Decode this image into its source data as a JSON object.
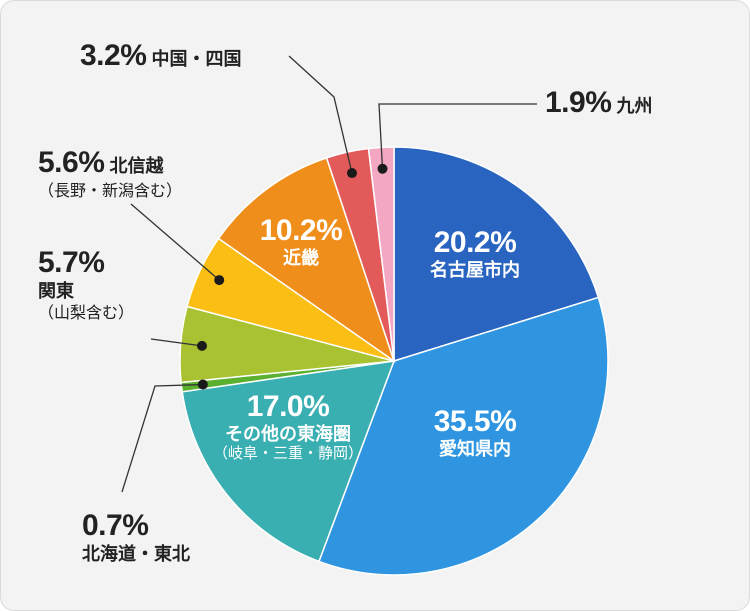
{
  "chart_data": {
    "type": "pie",
    "start_angle_deg": 0,
    "direction": "clockwise",
    "slices": [
      {
        "label": "名古屋市内",
        "pct_text": "20.2%",
        "value": 20.2,
        "color": "#2965c0",
        "sub": ""
      },
      {
        "label": "愛知県内",
        "pct_text": "35.5%",
        "value": 35.5,
        "color": "#2f95e0",
        "sub": ""
      },
      {
        "label": "その他の東海圏",
        "pct_text": "17.0%",
        "value": 17.0,
        "color": "#3aafb2",
        "sub": "（岐阜・三重・静岡）"
      },
      {
        "label": "北海道・東北",
        "pct_text": "0.7%",
        "value": 0.7,
        "color": "#5bb02f",
        "sub": ""
      },
      {
        "label": "関東",
        "pct_text": "5.7%",
        "value": 5.7,
        "color": "#a8c232",
        "sub": "（山梨含む）"
      },
      {
        "label": "北信越",
        "pct_text": "5.6%",
        "value": 5.6,
        "color": "#fbbe14",
        "sub": "（長野・新潟含む）"
      },
      {
        "label": "近畿",
        "pct_text": "10.2%",
        "value": 10.2,
        "color": "#ef8e1a",
        "sub": ""
      },
      {
        "label": "中国・四国",
        "pct_text": "3.2%",
        "value": 3.2,
        "color": "#e25a5a",
        "sub": ""
      },
      {
        "label": "九州",
        "pct_text": "1.9%",
        "value": 1.9,
        "color": "#f3a7c2",
        "sub": ""
      }
    ]
  }
}
